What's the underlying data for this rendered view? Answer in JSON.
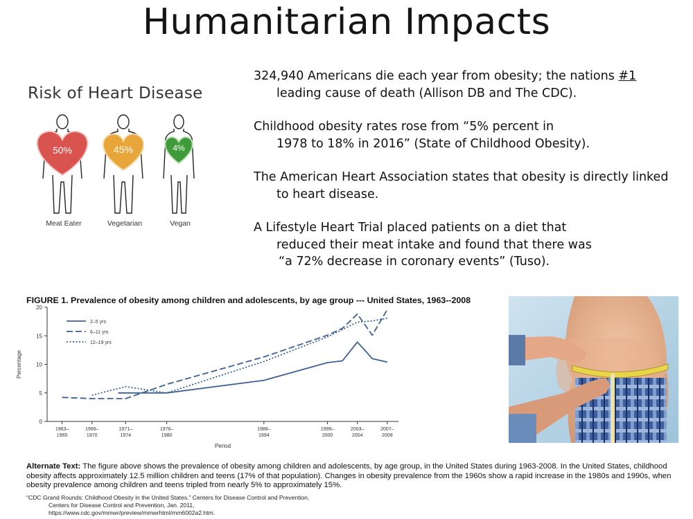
{
  "slide": {
    "title": "Humanitarian Impacts"
  },
  "heart_graphic": {
    "title": "Risk of Heart Disease",
    "figures": [
      {
        "percent": "50%",
        "label": "Meat Eater",
        "color": "#d9534f"
      },
      {
        "percent": "45%",
        "label": "Vegetarian",
        "color": "#e8a53a"
      },
      {
        "percent": "4%",
        "label": "Vegan",
        "color": "#3f9a3a"
      }
    ]
  },
  "bullets": [
    {
      "line1_pre": "324,940 Americans die each year from obesity; the nations ",
      "line1_underlined": "#1",
      "line2": "leading cause of death (Allison DB and The CDC)."
    },
    {
      "line1": "Childhood obesity rates rose from “5% percent in",
      "line2": "1978 to 18% in 2016” (State of Childhood Obesity)."
    },
    {
      "line1": "The American Heart Association states that obesity is directly linked",
      "line2": "to heart disease."
    },
    {
      "line1": "A Lifestyle Heart Trial placed patients on a diet that",
      "line2": "reduced their meat intake and found that there was",
      "line3": "“a 72% decrease in coronary events” (Tuso)."
    }
  ],
  "chart_data": {
    "type": "line",
    "title": "FIGURE 1. Prevalence of obesity among children and adolescents, by age group --- United States, 1963--2008",
    "xlabel": "Period",
    "ylabel": "Percentage",
    "ylim": [
      0,
      20
    ],
    "yticks": [
      "0",
      "5",
      "10",
      "15",
      "20"
    ],
    "categories": [
      [
        "1963–",
        "1965"
      ],
      [
        "1966–",
        "1970"
      ],
      [
        "1971–",
        "1974"
      ],
      [
        "1976–",
        "1980"
      ],
      [
        "1988–",
        "1994"
      ],
      [
        "1999–",
        "2000"
      ],
      [
        "2003–",
        "2004"
      ],
      [
        "2007–",
        "2008"
      ]
    ],
    "x_years": [
      1964,
      1968,
      1972.5,
      1978,
      1991,
      1999.5,
      2003.5,
      2007.5
    ],
    "series": [
      {
        "name": "2–5 yrs",
        "style": "solid",
        "x": [
          1971.5,
          1978,
          1991,
          1999.5,
          2001.5,
          2003.5,
          2005.5,
          2007.5
        ],
        "values": [
          5.0,
          5.0,
          7.2,
          10.3,
          10.6,
          13.9,
          11.0,
          10.4
        ]
      },
      {
        "name": "6–11 yrs",
        "style": "dashed",
        "x": [
          1964,
          1968,
          1972.5,
          1978,
          1991,
          1999.5,
          2001.5,
          2003.5,
          2005.5,
          2007.5
        ],
        "values": [
          4.2,
          4.0,
          4.0,
          6.5,
          11.3,
          15.1,
          16.3,
          18.8,
          15.1,
          19.6
        ]
      },
      {
        "name": "12–19 yrs",
        "style": "dotted",
        "x": [
          1968,
          1972.5,
          1978,
          1991,
          1999.5,
          2001.5,
          2003.5,
          2005.5,
          2007.5
        ],
        "values": [
          4.6,
          6.1,
          5.0,
          10.5,
          14.8,
          16.1,
          17.4,
          17.6,
          18.1
        ]
      }
    ],
    "legend": "top-left",
    "colors": {
      "line": "#3c5f94"
    }
  },
  "alt_text": {
    "label": "Alternate Text:",
    "body": "The figure above shows the prevalence of obesity among children and adolescents, by age group, in the United States during 1963-2008. In the United States, childhood obesity affects approximately 12.5 million children and teens (17% of that population). Changes in obesity prevalence from the 1960s show a rapid increase in the 1980s and 1990s, when obesity prevalence among children and teens tripled from nearly 5% to approximately 15%."
  },
  "citation": {
    "line1": "“CDC Grand Rounds: Childhood Obesity in the United States.” Centers for Disease Control and Prevention,",
    "line2": "Centers for Disease Control and Prevention, Jan. 2011,",
    "line3": "https://www.cdc.gov/mmwr/preview/mmwrhtml/mm6002a2.htm."
  }
}
